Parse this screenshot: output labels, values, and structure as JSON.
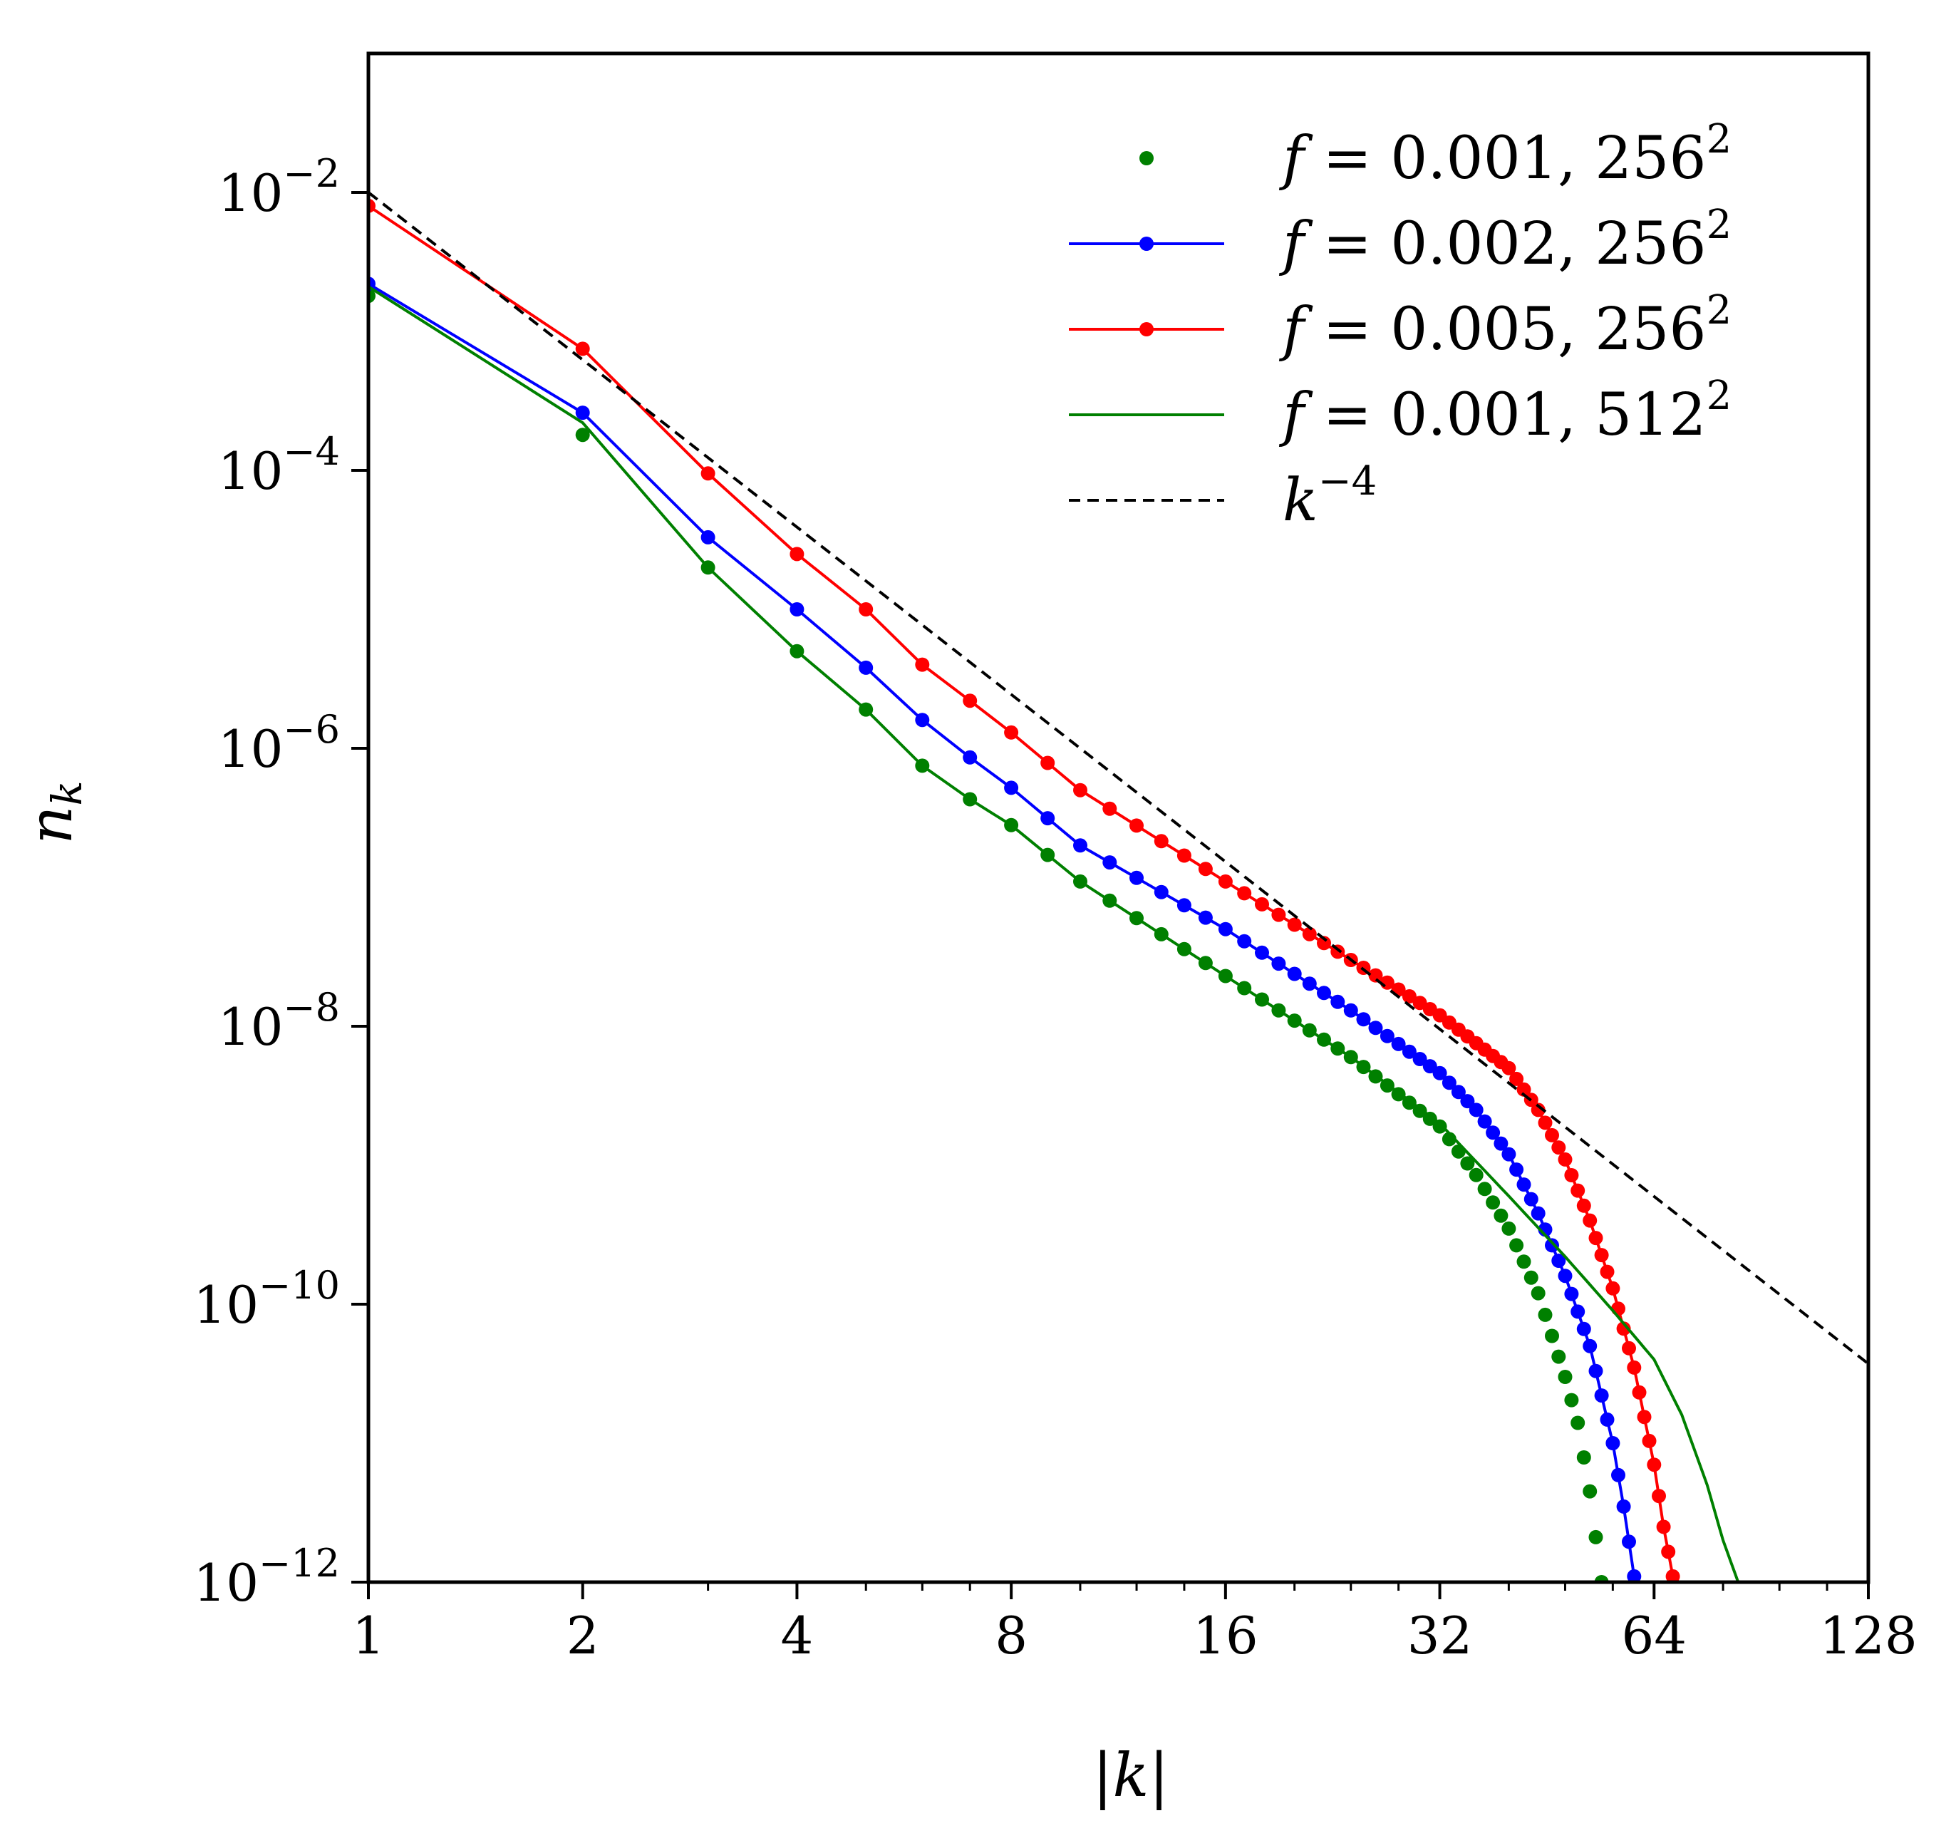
{
  "chart_data": {
    "type": "line",
    "xscale": "log2",
    "yscale": "log10",
    "xlabel": "|k|",
    "ylabel": "n_k",
    "xlim": [
      1,
      128
    ],
    "ylim": [
      1e-12,
      0.1
    ],
    "x_ticks": [
      1,
      2,
      4,
      8,
      16,
      32,
      64,
      128
    ],
    "x_tick_labels": [
      "1",
      "2",
      "4",
      "8",
      "16",
      "32",
      "64",
      "128"
    ],
    "y_ticks": [
      0.01,
      0.0001,
      1e-06,
      1e-08,
      1e-10,
      1e-12
    ],
    "y_tick_labels": [
      {
        "base": "10",
        "exp": "−2"
      },
      {
        "base": "10",
        "exp": "−4"
      },
      {
        "base": "10",
        "exp": "−6"
      },
      {
        "base": "10",
        "exp": "−8"
      },
      {
        "base": "10",
        "exp": "−10"
      },
      {
        "base": "10",
        "exp": "−12"
      }
    ],
    "legend_position": "top-right",
    "series": [
      {
        "name": "f = 0.001, 256²",
        "label_math": "f",
        "label_rest": " = 0.001, 256",
        "label_sup": "2",
        "color": "#008000",
        "style": "markers",
        "anchors": [
          [
            1,
            0.0018
          ],
          [
            2,
            0.00018
          ],
          [
            3,
            2e-05
          ],
          [
            4,
            5e-06
          ],
          [
            5,
            1.9e-06
          ],
          [
            6,
            7.5e-07
          ],
          [
            7,
            4.3e-07
          ],
          [
            8,
            2.8e-07
          ],
          [
            10,
            1.1e-07
          ],
          [
            16,
            2.3e-08
          ],
          [
            24,
            6e-09
          ],
          [
            32,
            1.9e-09
          ],
          [
            36,
            8.5e-10
          ],
          [
            40,
            3.5e-10
          ],
          [
            44,
            1.2e-10
          ],
          [
            48,
            3e-11
          ],
          [
            50,
            1.4e-11
          ],
          [
            52,
            4.5e-12
          ],
          [
            54,
            1e-12
          ]
        ]
      },
      {
        "name": "f = 0.002, 256²",
        "label_math": "f",
        "label_rest": " = 0.002, 256",
        "label_sup": "2",
        "color": "#0000ff",
        "style": "line+markers",
        "anchors": [
          [
            1,
            0.0022
          ],
          [
            2,
            0.00026
          ],
          [
            3,
            3.3e-05
          ],
          [
            4,
            1e-05
          ],
          [
            5,
            3.8e-06
          ],
          [
            6,
            1.6e-06
          ],
          [
            7,
            8.6e-07
          ],
          [
            8,
            5.2e-07
          ],
          [
            10,
            2e-07
          ],
          [
            16,
            5e-08
          ],
          [
            24,
            1.3e-08
          ],
          [
            32,
            4.6e-09
          ],
          [
            36,
            2.5e-09
          ],
          [
            40,
            1.2e-09
          ],
          [
            44,
            4.5e-10
          ],
          [
            48,
            1.6e-10
          ],
          [
            52,
            5e-11
          ],
          [
            56,
            1e-11
          ],
          [
            58,
            3.5e-12
          ],
          [
            60,
            1.1e-12
          ]
        ]
      },
      {
        "name": "f = 0.005, 256²",
        "label_math": "f",
        "label_rest": " = 0.005, 256",
        "label_sup": "2",
        "color": "#ff0000",
        "style": "line+markers",
        "anchors": [
          [
            1,
            0.008
          ],
          [
            2,
            0.00075
          ],
          [
            3,
            9.5e-05
          ],
          [
            4,
            2.5e-05
          ],
          [
            5,
            1e-05
          ],
          [
            6,
            4e-06
          ],
          [
            7,
            2.2e-06
          ],
          [
            8,
            1.3e-06
          ],
          [
            10,
            5e-07
          ],
          [
            16,
            1.1e-07
          ],
          [
            24,
            3e-08
          ],
          [
            32,
            1.2e-08
          ],
          [
            40,
            5e-09
          ],
          [
            44,
            2.5e-09
          ],
          [
            48,
            1.1e-09
          ],
          [
            52,
            4e-10
          ],
          [
            56,
            1.3e-10
          ],
          [
            60,
            3.5e-11
          ],
          [
            64,
            7e-12
          ],
          [
            66,
            2.5e-12
          ],
          [
            68,
            1.1e-12
          ]
        ]
      },
      {
        "name": "f = 0.001, 512²",
        "label_math": "f",
        "label_rest": " = 0.001, 512",
        "label_sup": "2",
        "color": "#008000",
        "style": "line",
        "anchors": [
          [
            1,
            0.0021
          ],
          [
            2,
            0.00022
          ],
          [
            3,
            2e-05
          ],
          [
            4,
            5e-06
          ],
          [
            5,
            1.9e-06
          ],
          [
            6,
            7.5e-07
          ],
          [
            7,
            4.3e-07
          ],
          [
            8,
            2.8e-07
          ],
          [
            10,
            1.1e-07
          ],
          [
            16,
            2.3e-08
          ],
          [
            24,
            6e-09
          ],
          [
            32,
            2e-09
          ],
          [
            40,
            6e-10
          ],
          [
            48,
            2.2e-10
          ],
          [
            56,
            9e-11
          ],
          [
            64,
            4e-11
          ],
          [
            70,
            1.6e-11
          ],
          [
            76,
            5e-12
          ],
          [
            80,
            2e-12
          ],
          [
            84,
            1e-12
          ]
        ]
      },
      {
        "name": "k^−4",
        "label_math": "k",
        "label_rest": "",
        "label_sup": "−4",
        "color": "#000000",
        "style": "dashed",
        "anchors": [
          [
            1,
            0.01
          ],
          [
            128,
            3.725e-11
          ]
        ]
      }
    ]
  }
}
